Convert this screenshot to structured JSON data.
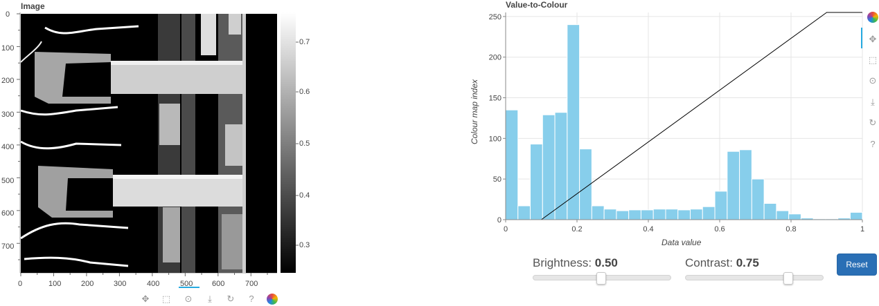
{
  "image_panel": {
    "title": "Image",
    "y_ticks": [
      "0",
      "100",
      "200",
      "300",
      "400",
      "500",
      "600",
      "700"
    ],
    "x_ticks": [
      "0",
      "100",
      "200",
      "300",
      "400",
      "500",
      "600",
      "700"
    ],
    "colorbar_ticks": [
      "0.7",
      "0.6",
      "0.5",
      "0.4",
      "0.3"
    ]
  },
  "hist_panel": {
    "title": "Value-to-Colour",
    "xlabel": "Data value",
    "ylabel": "Colour map index"
  },
  "toolbar_icons": [
    "pan-icon",
    "box-zoom-icon",
    "wheel-zoom-icon",
    "save-icon",
    "reset-icon",
    "help-icon",
    "bokeh-logo-icon"
  ],
  "controls": {
    "brightness_label": "Brightness: ",
    "brightness_value": "0.50",
    "brightness_level": 0.5,
    "contrast_label": "Contrast: ",
    "contrast_value": "0.75",
    "contrast_level": 0.75,
    "reset_label": "Reset"
  },
  "colors": {
    "bars": "#87ceeb",
    "button": "#2a6fb5",
    "tool_active": "#26aae1"
  },
  "chart_data": {
    "type": "bar",
    "title": "Value-to-Colour",
    "xlabel": "Data value",
    "ylabel": "Colour map index",
    "xlim": [
      0,
      1
    ],
    "ylim": [
      0,
      255
    ],
    "x_ticks": [
      "0",
      "0.2",
      "0.4",
      "0.6",
      "0.8",
      "1"
    ],
    "y_ticks": [
      "0",
      "50",
      "100",
      "150",
      "200",
      "250"
    ],
    "bin_width": 0.0345,
    "bins_left": [
      0,
      0.0345,
      0.069,
      0.1035,
      0.138,
      0.1725,
      0.207,
      0.2415,
      0.276,
      0.3105,
      0.345,
      0.3795,
      0.414,
      0.4485,
      0.483,
      0.5175,
      0.552,
      0.5865,
      0.621,
      0.6555,
      0.69,
      0.7245,
      0.759,
      0.7935,
      0.828,
      0.8625,
      0.897,
      0.9315,
      0.966
    ],
    "values": [
      135,
      17,
      93,
      129,
      132,
      240,
      87,
      17,
      13,
      11,
      12,
      12,
      13,
      13,
      12,
      13,
      16,
      35,
      84,
      86,
      50,
      20,
      11,
      7,
      2,
      1,
      1,
      2,
      9
    ],
    "mapping_line": [
      [
        0.1,
        0
      ],
      [
        0.9,
        255
      ],
      [
        1,
        255
      ]
    ],
    "grid": true
  }
}
